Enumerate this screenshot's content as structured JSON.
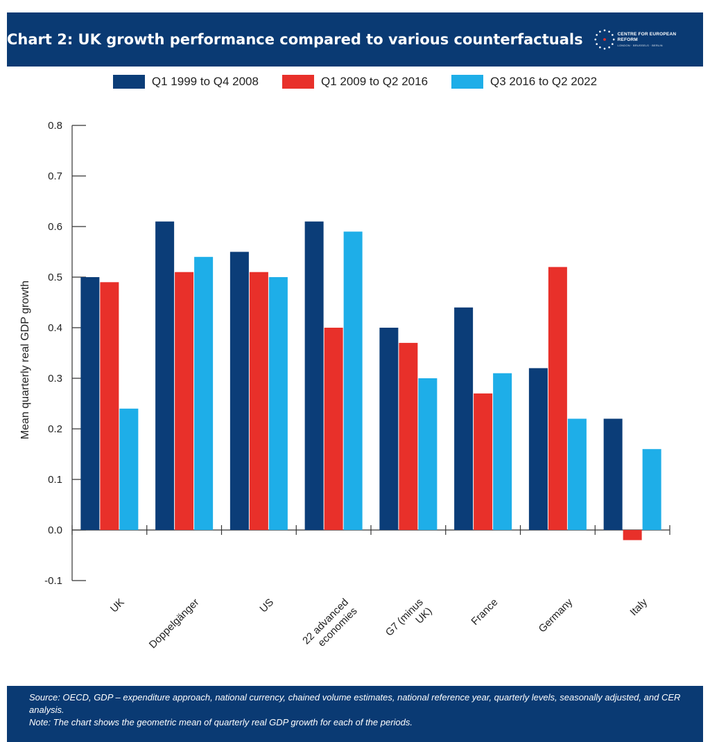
{
  "header": {
    "title": "Chart 2: UK growth performance compared to various counterfactuals",
    "logo_text": "CENTRE FOR EUROPEAN REFORM",
    "logo_subtext": "LONDON · BRUSSELS · BERLIN"
  },
  "colors": {
    "header_bg": "#0a3a73",
    "series": [
      "#0b3d78",
      "#e8302a",
      "#1eaee8"
    ]
  },
  "chart_data": {
    "type": "bar",
    "title": "Chart 2: UK growth performance compared to various counterfactuals",
    "ylabel": "Mean quarterly real GDP growth",
    "xlabel": "",
    "ylim": [
      -0.1,
      0.8
    ],
    "yticks": [
      "0.8",
      "0.7",
      "0.6",
      "0.5",
      "0.4",
      "0.3",
      "0.2",
      "0.1",
      "0.0",
      "-0.1"
    ],
    "categories": [
      "UK",
      "Doppelgänger",
      "US",
      "22 advanced economies",
      "G7 (minus UK)",
      "France",
      "Germany",
      "Italy"
    ],
    "series": [
      {
        "name": "Q1 1999 to Q4 2008",
        "color": "#0b3d78",
        "values": [
          0.5,
          0.61,
          0.55,
          0.61,
          0.4,
          0.44,
          0.32,
          0.22
        ]
      },
      {
        "name": "Q1 2009 to Q2 2016",
        "color": "#e8302a",
        "values": [
          0.49,
          0.51,
          0.51,
          0.4,
          0.37,
          0.27,
          0.52,
          -0.02
        ]
      },
      {
        "name": "Q3 2016 to Q2 2022",
        "color": "#1eaee8",
        "values": [
          0.24,
          0.54,
          0.5,
          0.59,
          0.3,
          0.31,
          0.22,
          0.16
        ]
      }
    ],
    "legend_position": "top-center",
    "grid": false
  },
  "footer": {
    "source": "Source:  OECD, GDP – expenditure approach, national currency, chained volume estimates, national reference year, quarterly levels, seasonally adjusted, and CER analysis.",
    "note": "Note: The chart shows the geometric mean of quarterly real GDP growth for each of the periods."
  }
}
